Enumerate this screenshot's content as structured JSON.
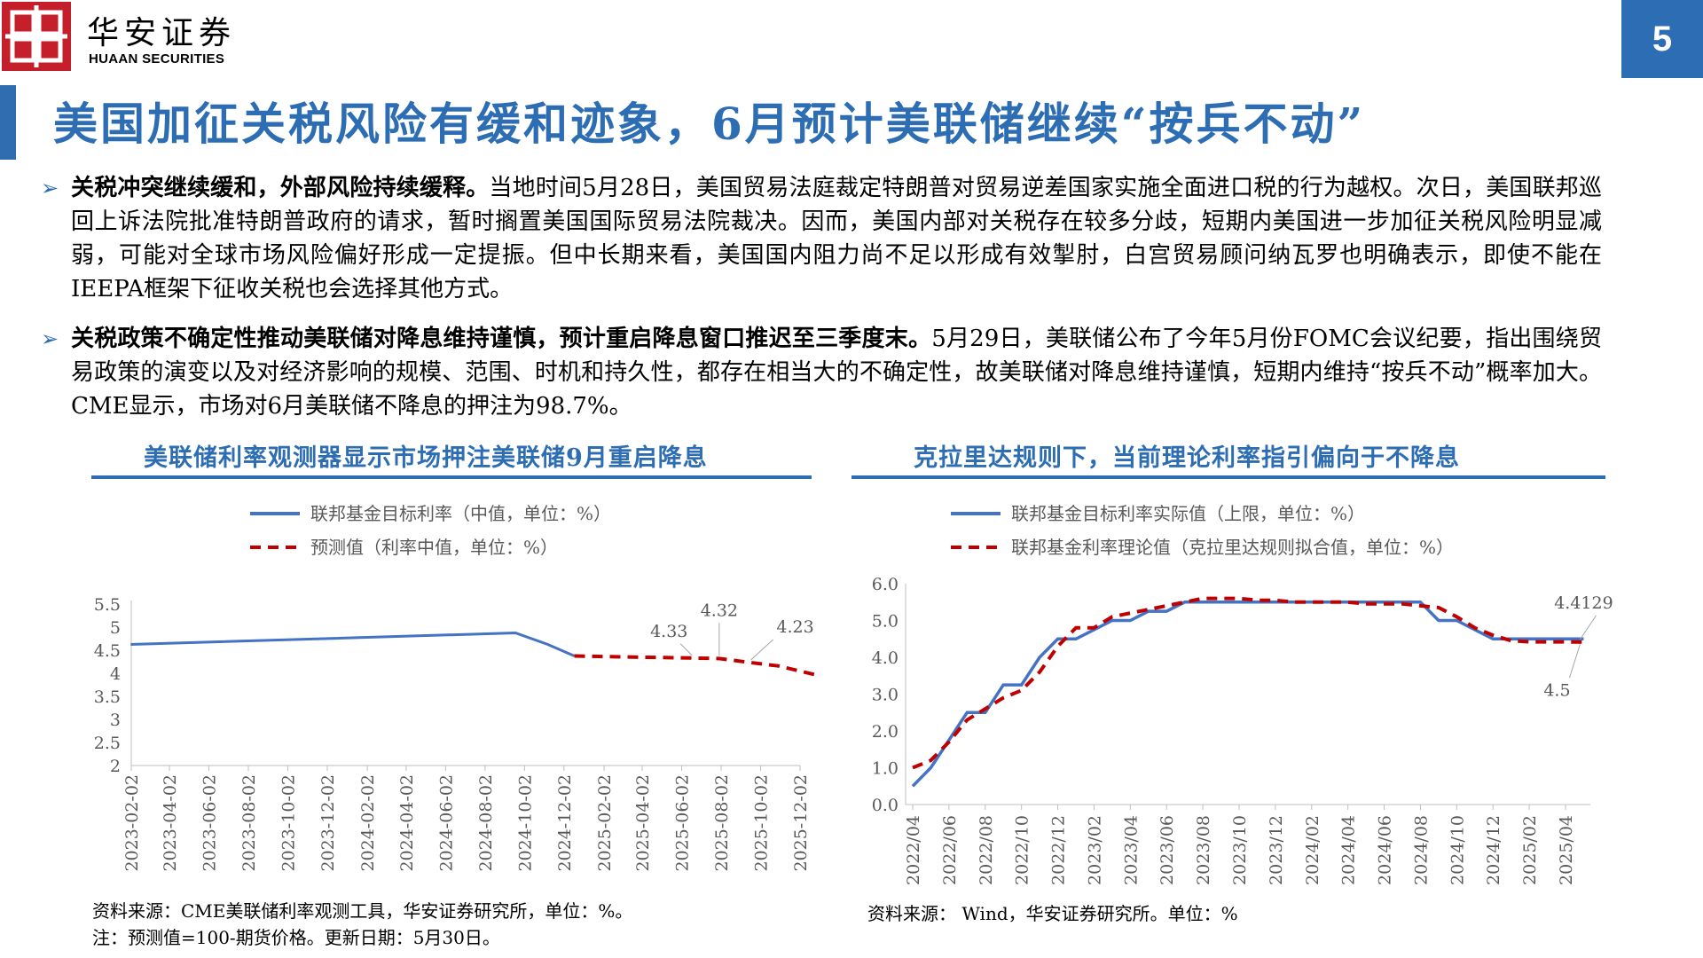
{
  "header": {
    "brand_cn": "华安证券",
    "brand_en": "HUAAN SECURITIES",
    "page_number": "5",
    "brand_color": "#c41f2b",
    "accent_color": "#2d6db3"
  },
  "title": "美国加征关税风险有缓和迹象，6月预计美联储继续“按兵不动”",
  "bullets": [
    {
      "bold": "关税冲突继续缓和，外部风险持续缓释。",
      "text": "当地时间5月28日，美国贸易法庭裁定特朗普对贸易逆差国家实施全面进口税的行为越权。次日，美国联邦巡回上诉法院批准特朗普政府的请求，暂时搁置美国国际贸易法院裁决。因而，美国内部对关税存在较多分歧，短期内美国进一步加征关税风险明显减弱，可能对全球市场风险偏好形成一定提振。但中长期来看，美国国内阻力尚不足以形成有效掣肘，白宫贸易顾问纳瓦罗也明确表示，即使不能在IEEPA框架下征收关税也会选择其他方式。"
    },
    {
      "bold": "关税政策不确定性推动美联储对降息维持谨慎，预计重启降息窗口推迟至三季度末。",
      "text": "5月29日，美联储公布了今年5月份FOMC会议纪要，指出围绕贸易政策的演变以及对经济影响的规模、范围、时机和持久性，都存在相当大的不确定性，故美联储对降息维持谨慎，短期内维持“按兵不动”概率加大。CME显示，市场对6月美联储不降息的押注为98.7%。"
    }
  ],
  "chart_data": [
    {
      "type": "line",
      "title": "美联储利率观测器显示市场押注美联储9月重启降息",
      "legend": [
        "联邦基金目标利率（中值，单位：%）",
        "预测值（利率中值，单位：%）"
      ],
      "legend_placement": "top",
      "x_ticks": [
        "2023-02-02",
        "2023-04-02",
        "2023-06-02",
        "2023-08-02",
        "2023-10-02",
        "2023-12-02",
        "2024-02-02",
        "2024-04-02",
        "2024-06-02",
        "2024-08-02",
        "2024-10-02",
        "2024-12-02",
        "2025-02-02",
        "2025-04-02",
        "2025-06-02",
        "2025-08-02",
        "2025-10-02",
        "2025-12-02"
      ],
      "y_ticks": [
        "2",
        "2.5",
        "3",
        "3.5",
        "4",
        "4.5",
        "5",
        "5.5"
      ],
      "ylim": [
        2,
        5.5
      ],
      "series": [
        {
          "name": "联邦基金目标利率（中值，单位：%）",
          "style": "solid",
          "color": "#4472c4",
          "points": [
            [
              "2023-02-01",
              4.625
            ],
            [
              "2024-09-18",
              4.875
            ],
            [
              "2024-11-07",
              4.625
            ],
            [
              "2024-12-18",
              4.375
            ]
          ]
        },
        {
          "name": "预测值（利率中值，单位：%）",
          "style": "dashed",
          "color": "#c00000",
          "points": [
            [
              "2024-12-18",
              4.375
            ],
            [
              "2025-03-19",
              4.35
            ],
            [
              "2025-06-18",
              4.33
            ],
            [
              "2025-07-30",
              4.32
            ],
            [
              "2025-09-17",
              4.23
            ],
            [
              "2025-10-29",
              4.16
            ],
            [
              "2025-12-31",
              3.95
            ]
          ]
        }
      ],
      "annotations": [
        {
          "label": "4.33",
          "x": "2025-06-18",
          "y": 4.33
        },
        {
          "label": "4.32",
          "x": "2025-07-30",
          "y": 4.32
        },
        {
          "label": "4.23",
          "x": "2025-09-17",
          "y": 4.23
        }
      ],
      "source": "资料来源：CME美联储利率观测工具，华安证券研究所，单位：%。",
      "note": "注：预测值=100-期货价格。更新日期：5月30日。"
    },
    {
      "type": "line",
      "title": "克拉里达规则下，当前理论利率指引偏向于不降息",
      "legend": [
        "联邦基金目标利率实际值（上限，单位：%）",
        "联邦基金利率理论值（克拉里达规则拟合值，单位：%）"
      ],
      "legend_placement": "top",
      "x_ticks": [
        "2022/04",
        "2022/06",
        "2022/08",
        "2022/10",
        "2022/12",
        "2023/02",
        "2023/04",
        "2023/06",
        "2023/08",
        "2023/10",
        "2023/12",
        "2024/02",
        "2024/04",
        "2024/06",
        "2024/08",
        "2024/10",
        "2024/12",
        "2025/02",
        "2025/04"
      ],
      "y_ticks": [
        "0.0",
        "1.0",
        "2.0",
        "3.0",
        "4.0",
        "5.0",
        "6.0"
      ],
      "ylim": [
        0,
        6
      ],
      "series": [
        {
          "name": "联邦基金目标利率实际值（上限，单位：%）",
          "style": "solid",
          "color": "#4472c4",
          "points": [
            [
              "2022/04",
              0.5
            ],
            [
              "2022/05",
              1.0
            ],
            [
              "2022/06",
              1.75
            ],
            [
              "2022/07",
              2.5
            ],
            [
              "2022/08",
              2.5
            ],
            [
              "2022/09",
              3.25
            ],
            [
              "2022/10",
              3.25
            ],
            [
              "2022/11",
              4.0
            ],
            [
              "2022/12",
              4.5
            ],
            [
              "2023/01",
              4.5
            ],
            [
              "2023/02",
              4.75
            ],
            [
              "2023/03",
              5.0
            ],
            [
              "2023/04",
              5.0
            ],
            [
              "2023/05",
              5.25
            ],
            [
              "2023/06",
              5.25
            ],
            [
              "2023/07",
              5.5
            ],
            [
              "2023/08",
              5.5
            ],
            [
              "2023/09",
              5.5
            ],
            [
              "2023/10",
              5.5
            ],
            [
              "2023/11",
              5.5
            ],
            [
              "2023/12",
              5.5
            ],
            [
              "2024/01",
              5.5
            ],
            [
              "2024/02",
              5.5
            ],
            [
              "2024/03",
              5.5
            ],
            [
              "2024/04",
              5.5
            ],
            [
              "2024/05",
              5.5
            ],
            [
              "2024/06",
              5.5
            ],
            [
              "2024/07",
              5.5
            ],
            [
              "2024/08",
              5.5
            ],
            [
              "2024/09",
              5.0
            ],
            [
              "2024/10",
              5.0
            ],
            [
              "2024/11",
              4.75
            ],
            [
              "2024/12",
              4.5
            ],
            [
              "2025/01",
              4.5
            ],
            [
              "2025/02",
              4.5
            ],
            [
              "2025/03",
              4.5
            ],
            [
              "2025/04",
              4.5
            ],
            [
              "2025/05",
              4.5
            ]
          ]
        },
        {
          "name": "联邦基金利率理论值（克拉里达规则拟合值，单位：%）",
          "style": "dashed",
          "color": "#c00000",
          "points": [
            [
              "2022/04",
              1.0
            ],
            [
              "2022/05",
              1.2
            ],
            [
              "2022/06",
              1.7
            ],
            [
              "2022/07",
              2.3
            ],
            [
              "2022/08",
              2.6
            ],
            [
              "2022/09",
              2.9
            ],
            [
              "2022/10",
              3.1
            ],
            [
              "2022/11",
              3.6
            ],
            [
              "2022/12",
              4.3
            ],
            [
              "2023/01",
              4.8
            ],
            [
              "2023/02",
              4.8
            ],
            [
              "2023/03",
              5.1
            ],
            [
              "2023/04",
              5.2
            ],
            [
              "2023/05",
              5.3
            ],
            [
              "2023/06",
              5.4
            ],
            [
              "2023/07",
              5.5
            ],
            [
              "2023/08",
              5.6
            ],
            [
              "2023/09",
              5.6
            ],
            [
              "2023/10",
              5.6
            ],
            [
              "2023/11",
              5.55
            ],
            [
              "2023/12",
              5.55
            ],
            [
              "2024/01",
              5.5
            ],
            [
              "2024/02",
              5.5
            ],
            [
              "2024/03",
              5.5
            ],
            [
              "2024/04",
              5.5
            ],
            [
              "2024/05",
              5.45
            ],
            [
              "2024/06",
              5.45
            ],
            [
              "2024/07",
              5.45
            ],
            [
              "2024/08",
              5.4
            ],
            [
              "2024/09",
              5.35
            ],
            [
              "2024/10",
              5.1
            ],
            [
              "2024/11",
              4.8
            ],
            [
              "2024/12",
              4.6
            ],
            [
              "2025/01",
              4.45
            ],
            [
              "2025/02",
              4.42
            ],
            [
              "2025/03",
              4.42
            ],
            [
              "2025/04",
              4.42
            ],
            [
              "2025/05",
              4.4129
            ]
          ]
        }
      ],
      "annotations": [
        {
          "label": "4.4129",
          "x": "2025/05",
          "y": 4.4129
        },
        {
          "label": "4.5",
          "x": "2025/05",
          "y": 4.5
        }
      ],
      "source": "资料来源： Wind，华安证券研究所。单位：%"
    }
  ]
}
